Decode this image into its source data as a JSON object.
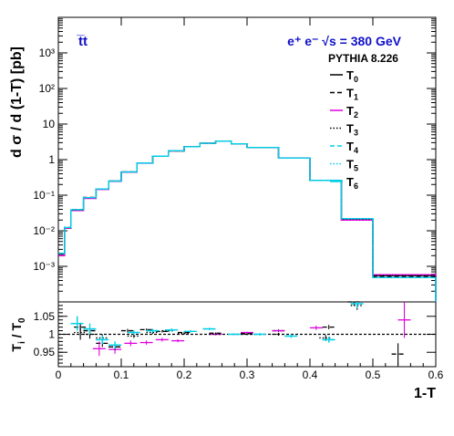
{
  "texts": {
    "process": "t̅t",
    "beam_energy": "e⁺ e⁻  √s = 380 GeV",
    "generator": "PYTHIA 8.226",
    "ylabel_top": "d σ / d (1-T) [pb]",
    "ylabel_bottom": "T_i / T_0",
    "xlabel": "1-T"
  },
  "colors": {
    "T0": "#000000",
    "T1": "#000000",
    "T2": "#e000e0",
    "T3": "#000000",
    "T4": "#00d0e8",
    "T5": "#00d0e8",
    "T6": "#00d0e8",
    "title_blue": "#1010c8"
  },
  "chart_data": [
    {
      "type": "line",
      "panel": "main",
      "step": true,
      "ylabel": "d σ / d (1-T) [pb]",
      "yscale": "log",
      "ylim": [
        0.0001,
        10000
      ],
      "xlim": [
        0,
        0.6
      ],
      "y_tick_labels": [
        "10⁻³",
        "10⁻²",
        "10⁻¹",
        "1",
        "10",
        "10²",
        "10³"
      ],
      "bin_edges": [
        0,
        0.01,
        0.02,
        0.04,
        0.06,
        0.08,
        0.1,
        0.125,
        0.15,
        0.175,
        0.2,
        0.225,
        0.25,
        0.275,
        0.3,
        0.35,
        0.4,
        0.45,
        0.5,
        0.6
      ],
      "legend": [
        "T0",
        "T1",
        "T2",
        "T3",
        "T4",
        "T5",
        "T6"
      ],
      "series": [
        {
          "name": "T0",
          "style": "solid",
          "values": [
            0.0022,
            0.012,
            0.038,
            0.085,
            0.15,
            0.25,
            0.45,
            0.8,
            1.25,
            1.75,
            2.3,
            2.9,
            3.3,
            2.8,
            2.2,
            1.1,
            0.26,
            0.02,
            0.00055
          ]
        },
        {
          "name": "T1",
          "style": "dashed",
          "values": [
            0.0023,
            0.0125,
            0.039,
            0.087,
            0.15,
            0.25,
            0.45,
            0.8,
            1.25,
            1.75,
            2.3,
            2.9,
            3.3,
            2.8,
            2.2,
            1.1,
            0.26,
            0.02,
            0.00052
          ]
        },
        {
          "name": "T2",
          "style": "solid",
          "values": [
            0.002,
            0.0118,
            0.037,
            0.081,
            0.145,
            0.245,
            0.44,
            0.79,
            1.24,
            1.75,
            2.3,
            2.9,
            3.3,
            2.8,
            2.2,
            1.1,
            0.26,
            0.02,
            0.00058
          ]
        },
        {
          "name": "T3",
          "style": "dotted",
          "values": [
            0.0022,
            0.012,
            0.038,
            0.085,
            0.15,
            0.25,
            0.45,
            0.8,
            1.25,
            1.75,
            2.3,
            2.9,
            3.3,
            2.8,
            2.2,
            1.1,
            0.26,
            0.021,
            0.00055
          ]
        },
        {
          "name": "T4",
          "style": "dashed",
          "values": [
            0.0023,
            0.0124,
            0.039,
            0.086,
            0.15,
            0.25,
            0.45,
            0.8,
            1.25,
            1.76,
            2.3,
            2.9,
            3.3,
            2.8,
            2.2,
            1.1,
            0.26,
            0.022,
            0.00048
          ]
        },
        {
          "name": "T5",
          "style": "dotted",
          "values": [
            0.0023,
            0.0124,
            0.039,
            0.086,
            0.15,
            0.25,
            0.45,
            0.8,
            1.25,
            1.76,
            2.3,
            2.9,
            3.3,
            2.8,
            2.2,
            1.1,
            0.26,
            0.022,
            0.00048
          ]
        },
        {
          "name": "T6",
          "style": "solid",
          "values": [
            0.0023,
            0.0124,
            0.039,
            0.086,
            0.15,
            0.25,
            0.45,
            0.8,
            1.25,
            1.76,
            2.3,
            2.9,
            3.3,
            2.8,
            2.2,
            1.1,
            0.26,
            0.022,
            0.00048
          ]
        }
      ]
    },
    {
      "type": "scatter",
      "panel": "ratio",
      "ylabel": "T_i / T_0",
      "xlabel": "1-T",
      "ylim": [
        0.91,
        1.09
      ],
      "xlim": [
        0,
        0.6
      ],
      "y_ticks": [
        0.95,
        1,
        1.05
      ],
      "x_ticks": [
        0,
        0.1,
        0.2,
        0.3,
        0.4,
        0.5,
        0.6
      ],
      "reference_line": 1,
      "series": [
        {
          "name": "T1",
          "style": "dashed",
          "x": [
            0.035,
            0.05,
            0.07,
            0.09,
            0.11,
            0.14,
            0.165,
            0.2,
            0.25,
            0.3,
            0.35,
            0.43,
            0.47,
            0.54
          ],
          "y": [
            1.02,
            1.01,
            0.975,
            0.965,
            1.01,
            1.013,
            1.008,
            1.005,
            1.003,
            1.002,
            1.01,
            1.02,
            1.09,
            0.945
          ],
          "err": [
            0.012,
            0.01,
            0.01,
            0.006,
            0.005,
            0.003,
            0.003,
            0.002,
            0.002,
            0.002,
            0.004,
            0.006,
            0.01,
            0.03
          ]
        },
        {
          "name": "T2",
          "style": "solid",
          "x": [
            0.065,
            0.09,
            0.115,
            0.14,
            0.165,
            0.19,
            0.25,
            0.3,
            0.35,
            0.41,
            0.55
          ],
          "y": [
            0.96,
            0.958,
            0.975,
            0.977,
            0.985,
            0.982,
            1.0,
            1.005,
            1.01,
            1.018,
            1.04
          ],
          "err": [
            0.02,
            0.012,
            0.008,
            0.006,
            0.005,
            0.004,
            0.002,
            0.002,
            0.003,
            0.006,
            0.05
          ]
        },
        {
          "name": "T3",
          "style": "dotted",
          "x": [
            0.035,
            0.05,
            0.07,
            0.09,
            0.12,
            0.15,
            0.175,
            0.2,
            0.25,
            0.3,
            0.35,
            0.425,
            0.475
          ],
          "y": [
            1.005,
            1.0,
            0.99,
            0.965,
            0.995,
            1.005,
            1.01,
            1.002,
            1.0,
            1.0,
            1.0,
            0.99,
            1.08
          ],
          "err": [
            0.02,
            0.012,
            0.01,
            0.008,
            0.005,
            0.004,
            0.003,
            0.002,
            0.002,
            0.002,
            0.004,
            0.008,
            0.012
          ]
        },
        {
          "name": "T4",
          "style": "dashed",
          "x": [
            0.03,
            0.05,
            0.07,
            0.09,
            0.12,
            0.15,
            0.18,
            0.21,
            0.24,
            0.28,
            0.32,
            0.37,
            0.43,
            0.475
          ],
          "y": [
            1.03,
            1.015,
            0.985,
            0.97,
            1.005,
            1.01,
            1.012,
            1.008,
            1.015,
            1.0,
            1.0,
            0.995,
            0.985,
            1.085
          ],
          "err": [
            0.02,
            0.015,
            0.012,
            0.01,
            0.006,
            0.005,
            0.004,
            0.003,
            0.003,
            0.002,
            0.003,
            0.005,
            0.008,
            0.012
          ]
        },
        {
          "name": "T5",
          "style": "dotted",
          "x": [
            0.03,
            0.05,
            0.07,
            0.09,
            0.12,
            0.15,
            0.18,
            0.21,
            0.24,
            0.28,
            0.32,
            0.37,
            0.43,
            0.475
          ],
          "y": [
            1.03,
            1.015,
            0.985,
            0.97,
            1.005,
            1.01,
            1.012,
            1.008,
            1.015,
            1.0,
            1.0,
            0.995,
            0.985,
            1.085
          ],
          "err": [
            0.02,
            0.015,
            0.012,
            0.01,
            0.006,
            0.005,
            0.004,
            0.003,
            0.003,
            0.002,
            0.003,
            0.005,
            0.008,
            0.012
          ]
        },
        {
          "name": "T6",
          "style": "solid",
          "x": [
            0.03,
            0.05,
            0.07,
            0.09,
            0.12,
            0.15,
            0.18,
            0.21,
            0.24,
            0.28,
            0.32,
            0.37,
            0.43,
            0.475
          ],
          "y": [
            1.03,
            1.015,
            0.985,
            0.97,
            1.005,
            1.01,
            1.012,
            1.008,
            1.015,
            1.0,
            1.0,
            0.995,
            0.985,
            1.085
          ],
          "err": [
            0.02,
            0.015,
            0.012,
            0.01,
            0.006,
            0.005,
            0.004,
            0.003,
            0.003,
            0.002,
            0.003,
            0.005,
            0.008,
            0.012
          ]
        }
      ]
    }
  ]
}
